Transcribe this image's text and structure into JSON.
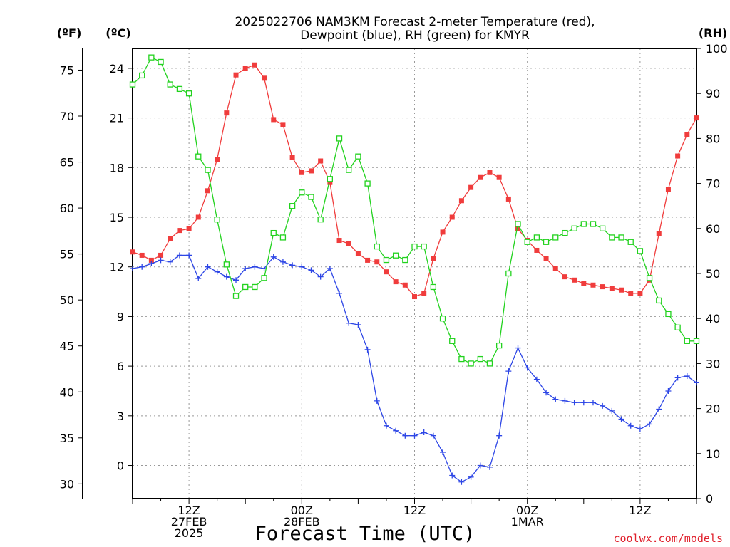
{
  "chart_data": {
    "type": "line",
    "title": [
      "2025022706 NAM3KM Forecast 2-meter Temperature (red),",
      "Dewpoint (blue), RH (green) for KMYR"
    ],
    "xlabel": "Forecast Time (UTC)",
    "units": {
      "left_f": "(ºF)",
      "left_c": "(ºC)",
      "right": "(RH)"
    },
    "x_range": [
      0,
      60
    ],
    "x_ticks": [
      {
        "x": 6,
        "lines": [
          "12Z",
          "27FEB",
          "2025"
        ]
      },
      {
        "x": 18,
        "lines": [
          "00Z",
          "28FEB"
        ]
      },
      {
        "x": 30,
        "lines": [
          "12Z"
        ]
      },
      {
        "x": 42,
        "lines": [
          "00Z",
          "1MAR"
        ]
      },
      {
        "x": 54,
        "lines": [
          "12Z"
        ]
      }
    ],
    "ylim_c": [
      -2,
      25.2
    ],
    "y_ticks_c": [
      0,
      3,
      6,
      9,
      12,
      15,
      18,
      21,
      24
    ],
    "ylim_f": [
      28.4,
      77.36
    ],
    "y_ticks_f": [
      30,
      35,
      40,
      45,
      50,
      55,
      60,
      65,
      70,
      75
    ],
    "ylim_rh": [
      0,
      100
    ],
    "y_ticks_rh": [
      0,
      10,
      20,
      30,
      40,
      50,
      60,
      70,
      80,
      90,
      100
    ],
    "grid": true,
    "x": [
      0,
      1,
      2,
      3,
      4,
      5,
      6,
      7,
      8,
      9,
      10,
      11,
      12,
      13,
      14,
      15,
      16,
      17,
      18,
      19,
      20,
      21,
      22,
      23,
      24,
      25,
      26,
      27,
      28,
      29,
      30,
      31,
      32,
      33,
      34,
      35,
      36,
      37,
      38,
      39,
      40,
      41,
      42,
      43,
      44,
      45,
      46,
      47,
      48,
      49,
      50,
      51,
      52,
      53,
      54,
      55,
      56,
      57,
      58,
      59,
      60
    ],
    "series": [
      {
        "name": "Temperature",
        "axis": "C",
        "color": "#f03c3c",
        "marker": "filled-square",
        "values": [
          12.9,
          12.7,
          12.4,
          12.7,
          13.7,
          14.2,
          14.3,
          15.0,
          16.6,
          18.5,
          21.3,
          23.6,
          24.0,
          24.2,
          23.4,
          20.9,
          20.6,
          18.6,
          17.7,
          17.8,
          18.4,
          17.1,
          13.6,
          13.4,
          12.8,
          12.4,
          12.3,
          11.7,
          11.1,
          10.9,
          10.2,
          10.4,
          12.5,
          14.1,
          15.0,
          16.0,
          16.8,
          17.4,
          17.7,
          17.4,
          16.1,
          14.3,
          13.6,
          13.0,
          12.5,
          11.9,
          11.4,
          11.2,
          11.0,
          10.9,
          10.8,
          10.7,
          10.6,
          10.4,
          10.4,
          11.2,
          14.0,
          16.7,
          18.7,
          20.0,
          21.0
        ]
      },
      {
        "name": "Dewpoint",
        "axis": "C",
        "color": "#2d46e6",
        "marker": "plus",
        "values": [
          11.9,
          12.0,
          12.2,
          12.4,
          12.3,
          12.7,
          12.7,
          11.3,
          12.0,
          11.7,
          11.4,
          11.2,
          11.9,
          12.0,
          11.9,
          12.6,
          12.3,
          12.1,
          12.0,
          11.8,
          11.4,
          11.9,
          10.4,
          8.6,
          8.5,
          7.0,
          3.9,
          2.4,
          2.1,
          1.8,
          1.8,
          2.0,
          1.8,
          0.8,
          -0.6,
          -1.0,
          -0.7,
          0.0,
          -0.1,
          1.8,
          5.7,
          7.1,
          5.9,
          5.2,
          4.4,
          4.0,
          3.9,
          3.8,
          3.8,
          3.8,
          3.6,
          3.3,
          2.8,
          2.4,
          2.2,
          2.5,
          3.4,
          4.5,
          5.3,
          5.4,
          5.0
        ]
      },
      {
        "name": "RH",
        "axis": "RH",
        "color": "#22d21e",
        "marker": "open-square",
        "values": [
          92,
          94,
          98,
          97,
          92,
          91,
          90,
          76,
          73,
          62,
          52,
          45,
          47,
          47,
          49,
          59,
          58,
          65,
          68,
          67,
          62,
          71,
          80,
          73,
          76,
          70,
          56,
          53,
          54,
          53,
          56,
          56,
          47,
          40,
          35,
          31,
          30,
          31,
          30,
          34,
          50,
          61,
          57,
          58,
          57,
          58,
          59,
          60,
          61,
          61,
          60,
          58,
          58,
          57,
          55,
          49,
          44,
          41,
          38,
          35,
          35
        ]
      }
    ]
  },
  "credit": "coolwx.com/models"
}
